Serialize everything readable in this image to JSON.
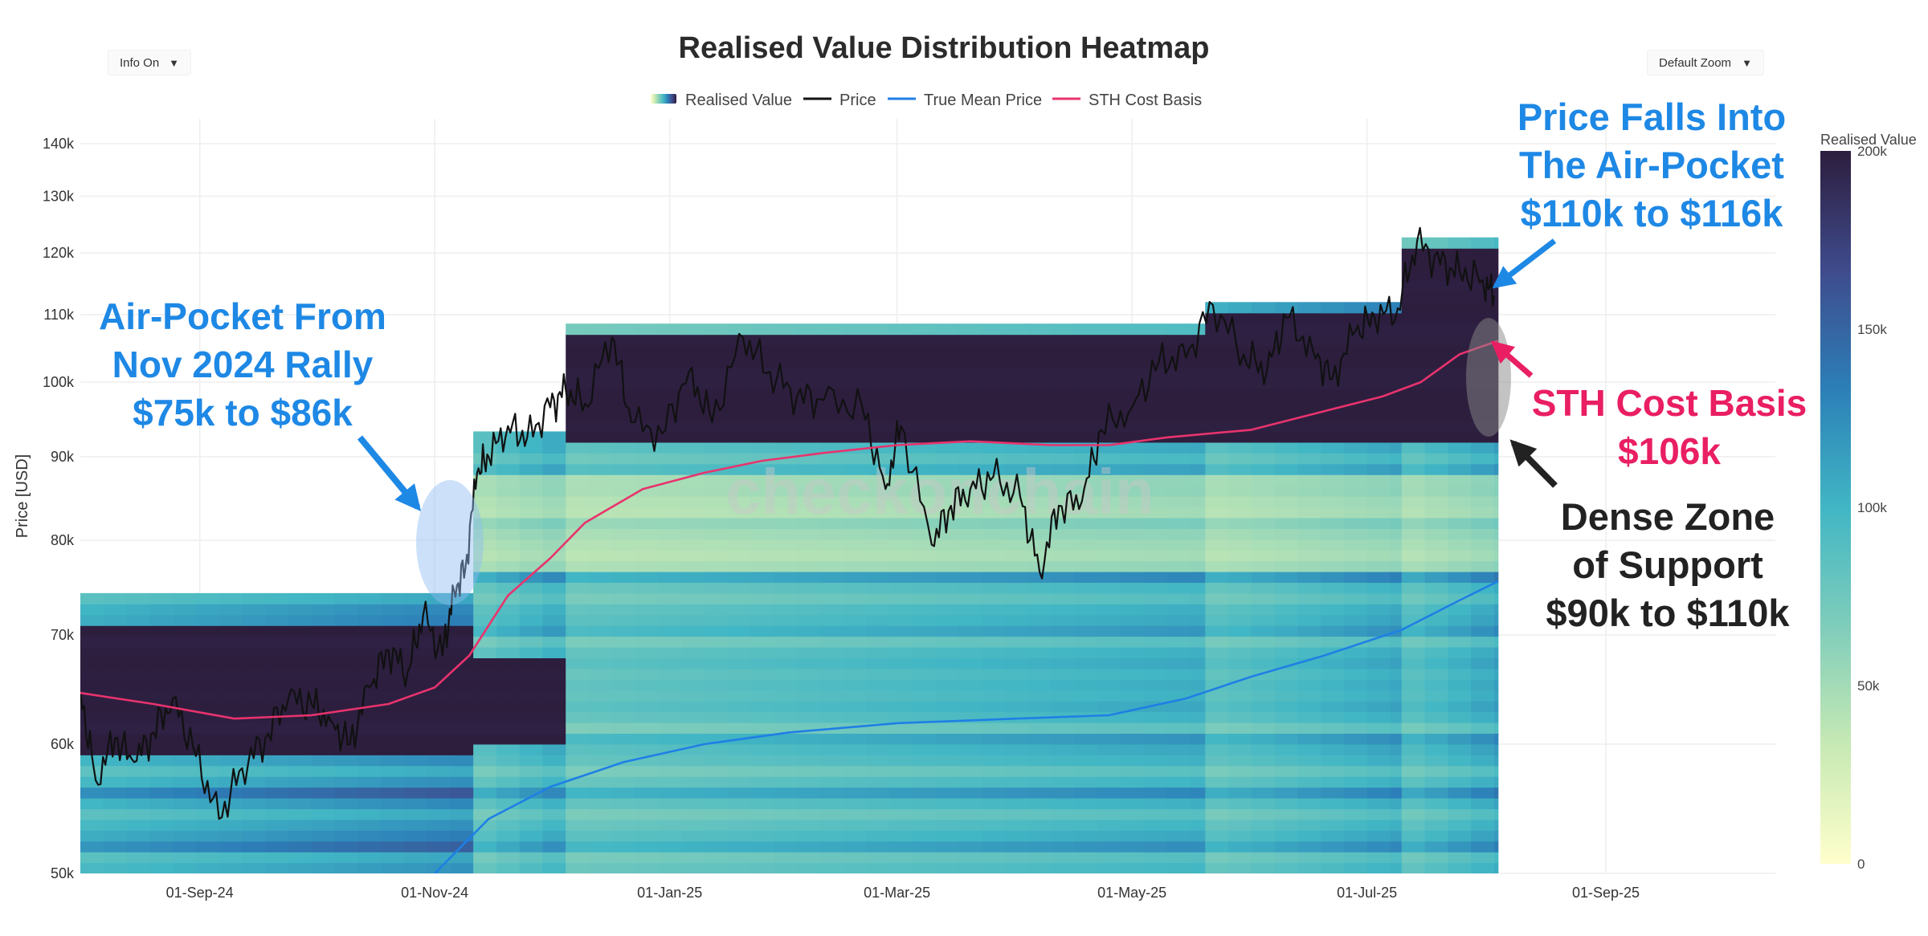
{
  "controls": {
    "info": {
      "label": "Info On",
      "caret": "▼"
    },
    "zoom": {
      "label": "Default Zoom",
      "caret": "▼"
    }
  },
  "colors": {
    "price": "#111111",
    "true_mean": "#1f7fe5",
    "sth": "#e8336d",
    "annotation_blue": "#1e88e5",
    "annotation_pink": "#e91e63",
    "annotation_dark": "#222222",
    "grid": "#eeeeee",
    "scale": [
      "#ffffcc",
      "#c7e9b4",
      "#7fcdbb",
      "#41b6c4",
      "#2c7fb8",
      "#3f4b8c",
      "#2d1e3e"
    ]
  },
  "watermark": "checkonchain",
  "annotations": {
    "air_pocket_old": [
      "Air-Pocket From",
      "Nov 2024 Rally",
      "$75k to $86k"
    ],
    "price_falls": [
      "Price Falls Into",
      "The Air-Pocket",
      "$110k to $116k"
    ],
    "sth": [
      "STH Cost Basis",
      "$106k"
    ],
    "dense_zone": [
      "Dense Zone",
      "of Support",
      "$90k to $110k"
    ]
  },
  "chart_data": {
    "type": "heatmap",
    "title": "Realised Value Distribution Heatmap",
    "xlabel": "",
    "ylabel": "Price [USD]",
    "y_scale": "log",
    "ylim": [
      50000,
      145000
    ],
    "xlim": [
      "2024-08-01",
      "2025-10-15"
    ],
    "x_ticks": [
      {
        "date": "2024-09-01",
        "label": "01-Sep-24"
      },
      {
        "date": "2024-11-01",
        "label": "01-Nov-24"
      },
      {
        "date": "2025-01-01",
        "label": "01-Jan-25"
      },
      {
        "date": "2025-03-01",
        "label": "01-Mar-25"
      },
      {
        "date": "2025-05-01",
        "label": "01-May-25"
      },
      {
        "date": "2025-07-01",
        "label": "01-Jul-25"
      },
      {
        "date": "2025-09-01",
        "label": "01-Sep-25"
      }
    ],
    "y_ticks": [
      {
        "value": 50000,
        "label": "50k"
      },
      {
        "value": 60000,
        "label": "60k"
      },
      {
        "value": 70000,
        "label": "70k"
      },
      {
        "value": 80000,
        "label": "80k"
      },
      {
        "value": 90000,
        "label": "90k"
      },
      {
        "value": 100000,
        "label": "100k"
      },
      {
        "value": 110000,
        "label": "110k"
      },
      {
        "value": 120000,
        "label": "120k"
      },
      {
        "value": 130000,
        "label": "130k"
      },
      {
        "value": 140000,
        "label": "140k"
      }
    ],
    "legend": {
      "placement": "top-center",
      "entries": [
        "Realised Value",
        "Price",
        "True Mean Price",
        "STH Cost Basis"
      ]
    },
    "colorbar": {
      "title": "Realised Value",
      "range": [
        0,
        200000
      ],
      "ticks": [
        {
          "value": 0,
          "label": "0"
        },
        {
          "value": 50000,
          "label": "50k"
        },
        {
          "value": 100000,
          "label": "100k"
        },
        {
          "value": 150000,
          "label": "150k"
        },
        {
          "value": 200000,
          "label": "200k"
        }
      ]
    },
    "heatmap_end": "2025-08-04",
    "heatmap_bands": [
      {
        "start": "2024-08-01",
        "low": 50000,
        "high": 74000,
        "base": 0.62,
        "dense_low": 59000,
        "dense_high": 71000
      },
      {
        "start": "2024-11-11",
        "low": 50000,
        "high": 93000,
        "base": 0.52,
        "dense_low": 60000,
        "dense_high": 68000
      },
      {
        "start": "2024-12-05",
        "low": 50000,
        "high": 108000,
        "base": 0.5,
        "dense_low": 92000,
        "dense_high": 107000
      },
      {
        "start": "2025-05-20",
        "low": 50000,
        "high": 112000,
        "base": 0.52,
        "dense_low": 92000,
        "dense_high": 110000
      },
      {
        "start": "2025-07-10",
        "low": 50000,
        "high": 122000,
        "base": 0.54,
        "dense_low": 92000,
        "dense_high": 120000
      }
    ],
    "series": [
      {
        "name": "Price",
        "values": [
          [
            "2024-08-01",
            64500
          ],
          [
            "2024-08-05",
            57000
          ],
          [
            "2024-08-10",
            60500
          ],
          [
            "2024-08-15",
            58500
          ],
          [
            "2024-08-20",
            61000
          ],
          [
            "2024-08-25",
            64000
          ],
          [
            "2024-08-31",
            59000
          ],
          [
            "2024-09-06",
            54000
          ],
          [
            "2024-09-12",
            58000
          ],
          [
            "2024-09-18",
            60500
          ],
          [
            "2024-09-24",
            64000
          ],
          [
            "2024-09-30",
            63500
          ],
          [
            "2024-10-05",
            62000
          ],
          [
            "2024-10-10",
            60000
          ],
          [
            "2024-10-15",
            65000
          ],
          [
            "2024-10-20",
            68500
          ],
          [
            "2024-10-25",
            66500
          ],
          [
            "2024-10-29",
            72000
          ],
          [
            "2024-11-03",
            68000
          ],
          [
            "2024-11-06",
            74500
          ],
          [
            "2024-11-09",
            77000
          ],
          [
            "2024-11-12",
            88000
          ],
          [
            "2024-11-15",
            90000
          ],
          [
            "2024-11-20",
            94000
          ],
          [
            "2024-11-25",
            92500
          ],
          [
            "2024-12-01",
            96500
          ],
          [
            "2024-12-05",
            99000
          ],
          [
            "2024-12-10",
            97000
          ],
          [
            "2024-12-17",
            106500
          ],
          [
            "2024-12-22",
            94500
          ],
          [
            "2024-12-30",
            93000
          ],
          [
            "2025-01-06",
            101500
          ],
          [
            "2025-01-12",
            94500
          ],
          [
            "2025-01-20",
            106500
          ],
          [
            "2025-01-27",
            101500
          ],
          [
            "2025-02-03",
            98000
          ],
          [
            "2025-02-10",
            97500
          ],
          [
            "2025-02-20",
            96500
          ],
          [
            "2025-02-26",
            86000
          ],
          [
            "2025-03-02",
            94000
          ],
          [
            "2025-03-10",
            79500
          ],
          [
            "2025-03-15",
            84000
          ],
          [
            "2025-03-20",
            86000
          ],
          [
            "2025-03-26",
            87500
          ],
          [
            "2025-04-02",
            85000
          ],
          [
            "2025-04-07",
            76500
          ],
          [
            "2025-04-12",
            84000
          ],
          [
            "2025-04-18",
            84500
          ],
          [
            "2025-04-23",
            93500
          ],
          [
            "2025-05-01",
            96500
          ],
          [
            "2025-05-08",
            103000
          ],
          [
            "2025-05-15",
            103500
          ],
          [
            "2025-05-22",
            111500
          ],
          [
            "2025-05-30",
            104000
          ],
          [
            "2025-06-05",
            101500
          ],
          [
            "2025-06-10",
            109500
          ],
          [
            "2025-06-17",
            104500
          ],
          [
            "2025-06-22",
            100500
          ],
          [
            "2025-06-28",
            107500
          ],
          [
            "2025-07-03",
            109500
          ],
          [
            "2025-07-09",
            111000
          ],
          [
            "2025-07-14",
            122000
          ],
          [
            "2025-07-20",
            118000
          ],
          [
            "2025-07-25",
            117000
          ],
          [
            "2025-07-31",
            115500
          ],
          [
            "2025-08-03",
            113000
          ]
        ]
      },
      {
        "name": "True Mean Price",
        "values": [
          [
            "2024-11-01",
            50000
          ],
          [
            "2024-11-15",
            54000
          ],
          [
            "2024-12-01",
            56500
          ],
          [
            "2024-12-20",
            58500
          ],
          [
            "2025-01-10",
            60000
          ],
          [
            "2025-02-01",
            61000
          ],
          [
            "2025-03-01",
            61800
          ],
          [
            "2025-04-01",
            62200
          ],
          [
            "2025-04-25",
            62500
          ],
          [
            "2025-05-15",
            64000
          ],
          [
            "2025-06-01",
            66000
          ],
          [
            "2025-06-20",
            68000
          ],
          [
            "2025-07-10",
            70500
          ],
          [
            "2025-07-25",
            73500
          ],
          [
            "2025-08-04",
            75500
          ]
        ]
      },
      {
        "name": "STH Cost Basis",
        "values": [
          [
            "2024-08-01",
            64500
          ],
          [
            "2024-08-20",
            63500
          ],
          [
            "2024-09-10",
            62200
          ],
          [
            "2024-09-30",
            62500
          ],
          [
            "2024-10-20",
            63500
          ],
          [
            "2024-11-01",
            65000
          ],
          [
            "2024-11-10",
            68000
          ],
          [
            "2024-11-20",
            74000
          ],
          [
            "2024-12-01",
            78000
          ],
          [
            "2024-12-10",
            82000
          ],
          [
            "2024-12-25",
            86000
          ],
          [
            "2025-01-10",
            88000
          ],
          [
            "2025-01-25",
            89500
          ],
          [
            "2025-02-10",
            90500
          ],
          [
            "2025-03-01",
            91500
          ],
          [
            "2025-03-20",
            92000
          ],
          [
            "2025-04-10",
            91500
          ],
          [
            "2025-04-25",
            91500
          ],
          [
            "2025-05-10",
            92500
          ],
          [
            "2025-06-01",
            93500
          ],
          [
            "2025-06-20",
            96000
          ],
          [
            "2025-07-05",
            98000
          ],
          [
            "2025-07-15",
            100000
          ],
          [
            "2025-07-25",
            104000
          ],
          [
            "2025-08-04",
            106000
          ]
        ]
      }
    ]
  }
}
